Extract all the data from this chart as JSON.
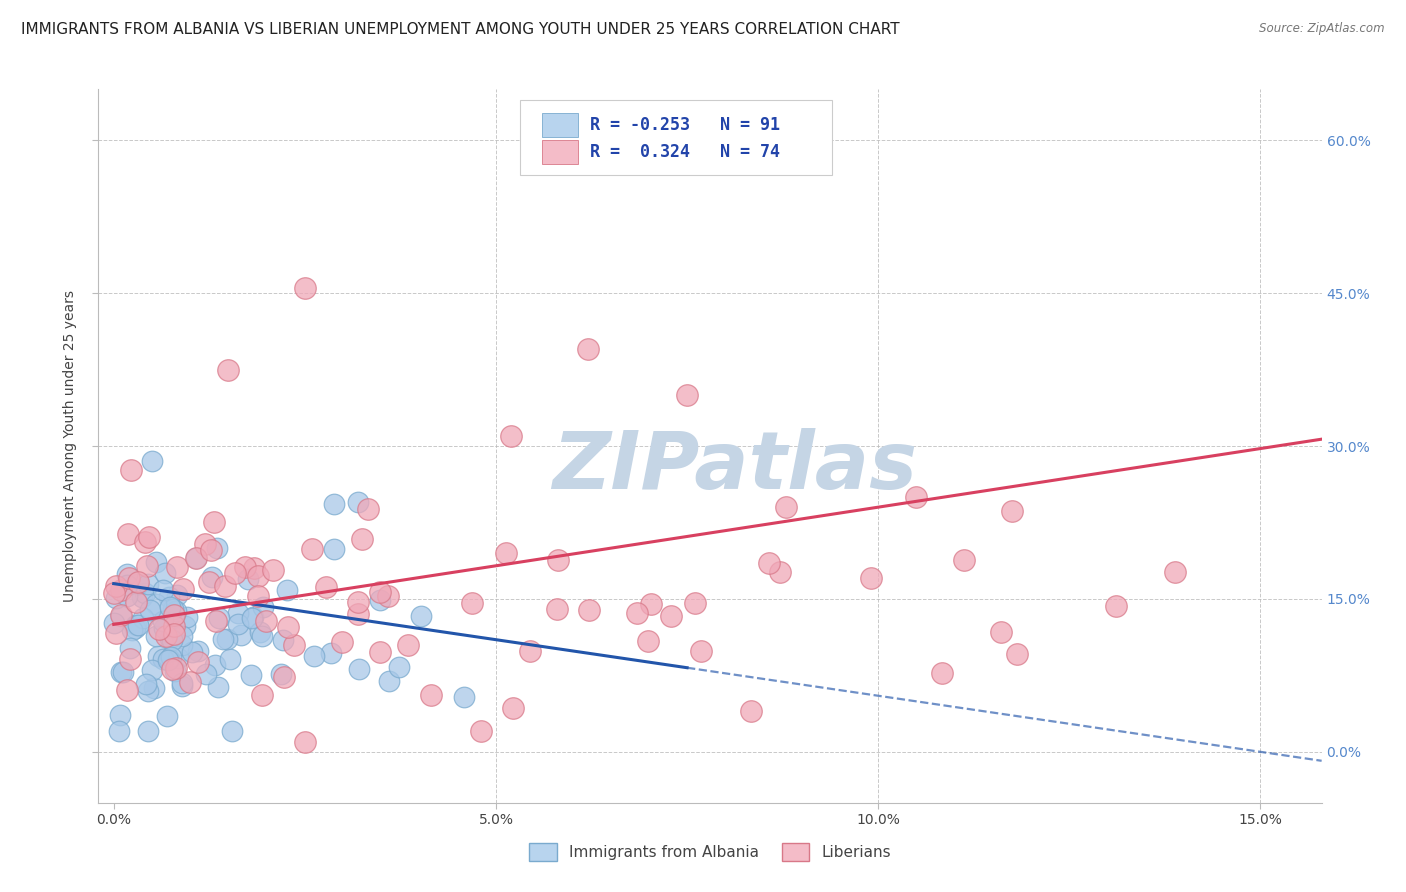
{
  "title": "IMMIGRANTS FROM ALBANIA VS LIBERIAN UNEMPLOYMENT AMONG YOUTH UNDER 25 YEARS CORRELATION CHART",
  "source": "Source: ZipAtlas.com",
  "ylabel": "Unemployment Among Youth under 25 years",
  "xlabel_ticks": [
    "0.0%",
    "5.0%",
    "10.0%",
    "15.0%"
  ],
  "xlabel_vals": [
    0.0,
    0.05,
    0.1,
    0.15
  ],
  "right_yticks_vals": [
    0.0,
    0.15,
    0.3,
    0.45,
    0.6
  ],
  "right_yticks_labels": [
    "0.0%",
    "15.0%",
    "30.0%",
    "45.0%",
    "60.0%"
  ],
  "xlim": [
    -0.002,
    0.158
  ],
  "ylim": [
    -0.05,
    0.65
  ],
  "series": [
    {
      "name": "Immigrants from Albania",
      "R": -0.253,
      "N": 91,
      "color": "#A8C8E8",
      "edge_color": "#7AAACE",
      "line_color": "#2255AA",
      "legend_color": "#B8D4EE"
    },
    {
      "name": "Liberians",
      "R": 0.324,
      "N": 74,
      "color": "#F0A8B8",
      "edge_color": "#D87888",
      "line_color": "#D84060",
      "legend_color": "#F4BCC8"
    }
  ],
  "watermark": "ZIPatlas",
  "watermark_color": "#C5D5E5",
  "background_color": "#FFFFFF",
  "grid_color": "#BBBBBB",
  "title_fontsize": 11,
  "axis_fontsize": 10,
  "legend_fontsize": 12
}
